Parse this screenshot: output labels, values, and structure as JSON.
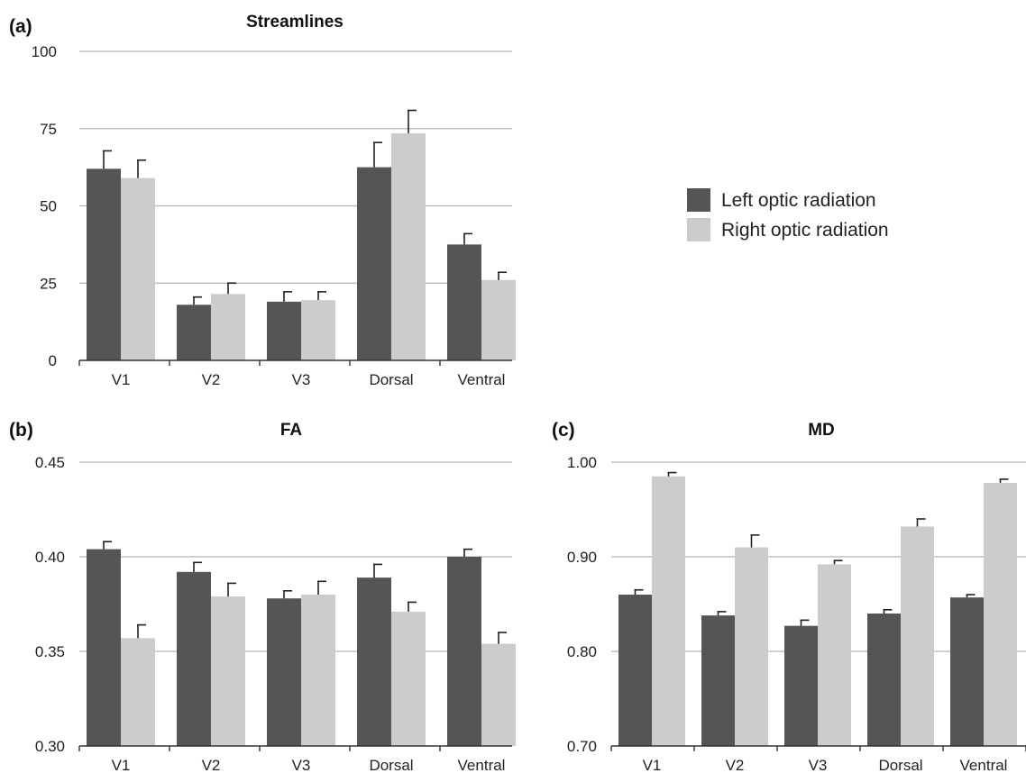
{
  "colors": {
    "left": "#555555",
    "right": "#cccccc",
    "grid": "#b3b3b3",
    "axis": "#333333"
  },
  "legend": [
    {
      "label": "Left optic radiation",
      "color": "#555555"
    },
    {
      "label": "Right optic radiation",
      "color": "#cccccc"
    }
  ],
  "chart_data": [
    {
      "type": "bar",
      "letter": "(a)",
      "title": "Streamlines",
      "categories": [
        "V1",
        "V2",
        "V3",
        "Dorsal",
        "Ventral"
      ],
      "ylim": [
        0,
        100
      ],
      "yticks": [
        "0",
        "25",
        "50",
        "75",
        "100"
      ],
      "tick_values": [
        0,
        25,
        50,
        75,
        100
      ],
      "grid": true,
      "series": [
        {
          "name": "Left optic radiation",
          "values": [
            62,
            18,
            19,
            62.5,
            37.5
          ],
          "errors": [
            5.8,
            2.5,
            3.2,
            8.0,
            3.5
          ]
        },
        {
          "name": "Right optic radiation",
          "values": [
            59,
            21.5,
            19.5,
            73.5,
            26
          ],
          "errors": [
            5.8,
            3.5,
            2.7,
            7.4,
            2.5
          ]
        }
      ]
    },
    {
      "type": "bar",
      "letter": "(b)",
      "title": "FA",
      "categories": [
        "V1",
        "V2",
        "V3",
        "Dorsal",
        "Ventral"
      ],
      "ylim": [
        0.3,
        0.45
      ],
      "yticks": [
        "0.30",
        "0.35",
        "0.40",
        "0.45"
      ],
      "tick_values": [
        0.3,
        0.35,
        0.4,
        0.45
      ],
      "grid": true,
      "series": [
        {
          "name": "Left optic radiation",
          "values": [
            0.404,
            0.392,
            0.378,
            0.389,
            0.4
          ],
          "errors": [
            0.004,
            0.005,
            0.004,
            0.007,
            0.004
          ]
        },
        {
          "name": "Right optic radiation",
          "values": [
            0.357,
            0.379,
            0.38,
            0.371,
            0.354
          ],
          "errors": [
            0.007,
            0.007,
            0.007,
            0.005,
            0.006
          ]
        }
      ]
    },
    {
      "type": "bar",
      "letter": "(c)",
      "title": "MD",
      "categories": [
        "V1",
        "V2",
        "V3",
        "Dorsal",
        "Ventral"
      ],
      "ylim": [
        0.7,
        1.0
      ],
      "yticks": [
        "0.70",
        "0.80",
        "0.90",
        "1.00"
      ],
      "tick_values": [
        0.7,
        0.8,
        0.9,
        1.0
      ],
      "grid": true,
      "series": [
        {
          "name": "Left optic radiation",
          "values": [
            0.86,
            0.838,
            0.827,
            0.84,
            0.857
          ],
          "errors": [
            0.005,
            0.004,
            0.006,
            0.004,
            0.003
          ]
        },
        {
          "name": "Right optic radiation",
          "values": [
            0.985,
            0.91,
            0.892,
            0.932,
            0.978
          ],
          "errors": [
            0.004,
            0.013,
            0.004,
            0.008,
            0.004
          ]
        }
      ]
    }
  ]
}
